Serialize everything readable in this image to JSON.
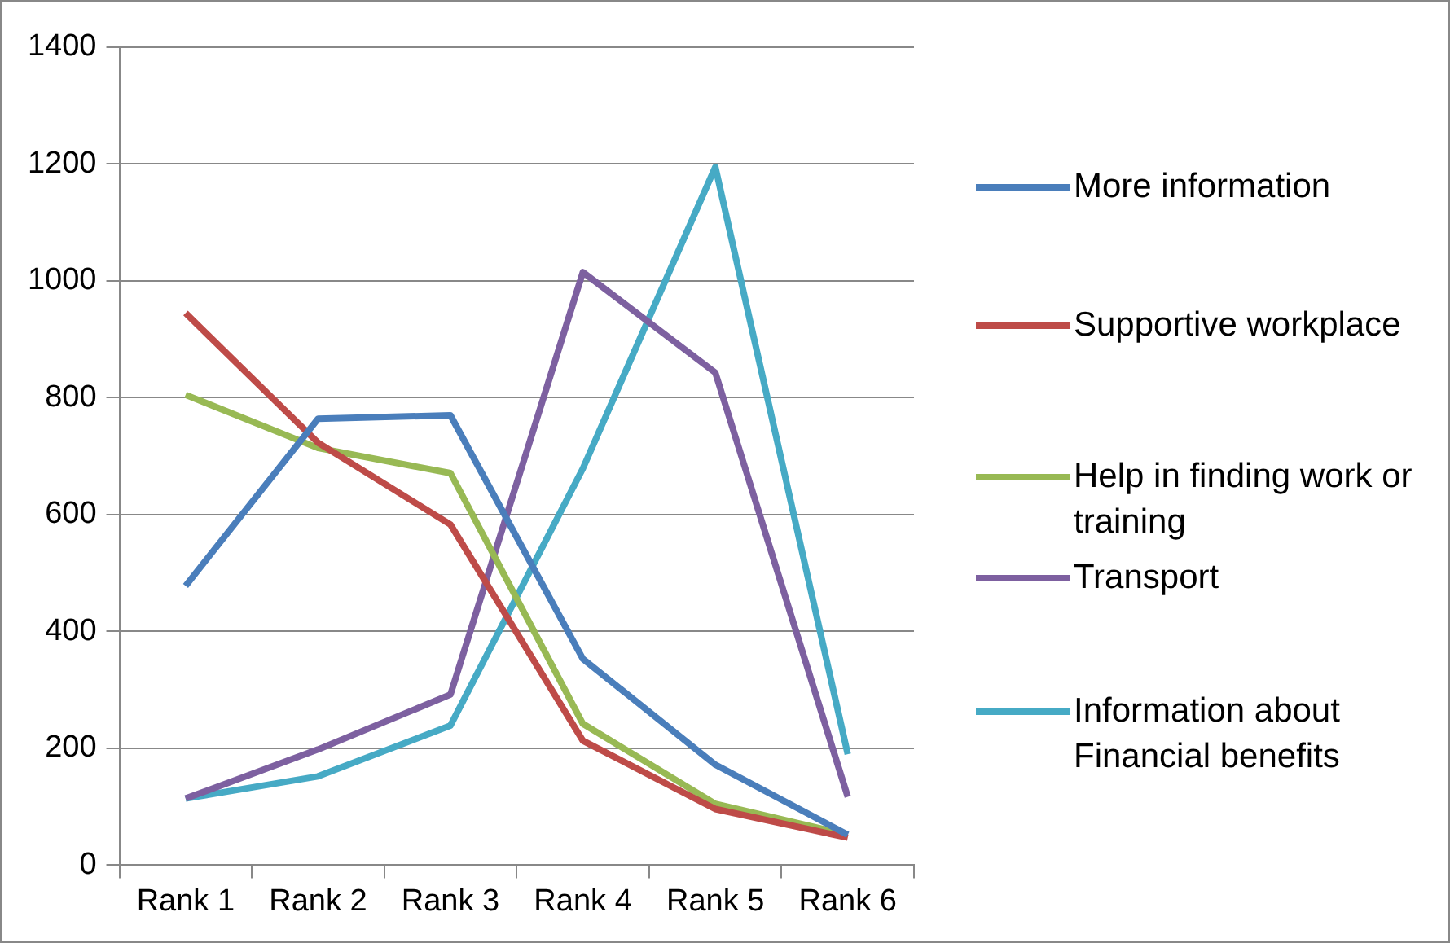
{
  "chart_data": {
    "type": "line",
    "categories": [
      "Rank 1",
      "Rank 2",
      "Rank 3",
      "Rank 4",
      "Rank 5",
      "Rank 6"
    ],
    "series": [
      {
        "name": "More information",
        "color": "#4a7ebb",
        "values": [
          478,
          764,
          770,
          353,
          172,
          52
        ]
      },
      {
        "name": "Supportive workplace",
        "color": "#be4b48",
        "values": [
          945,
          723,
          583,
          213,
          96,
          47
        ]
      },
      {
        "name": "Help in finding work or training",
        "color": "#98b954",
        "values": [
          805,
          714,
          671,
          242,
          105,
          52
        ]
      },
      {
        "name": "Transport",
        "color": "#7d60a0",
        "values": [
          114,
          198,
          292,
          1015,
          843,
          117
        ]
      },
      {
        "name": "Information about Financial benefits",
        "color": "#46aac5",
        "values": [
          114,
          152,
          239,
          679,
          1195,
          190
        ]
      }
    ],
    "ylim": [
      0,
      1400
    ],
    "yticks": [
      0,
      200,
      400,
      600,
      800,
      1000,
      1200,
      1400
    ],
    "grid": "y",
    "legend": "right",
    "marker": "none",
    "line_style": "solid"
  }
}
